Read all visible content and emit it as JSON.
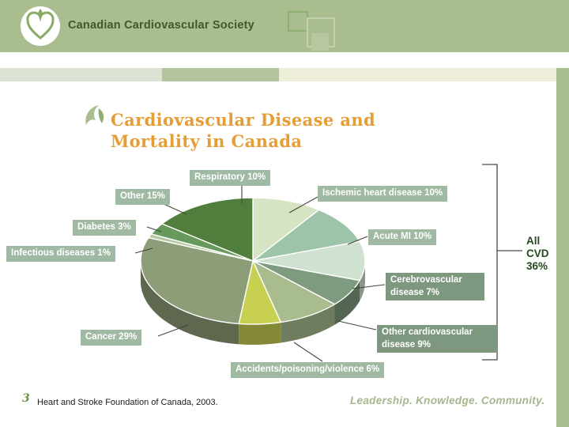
{
  "header": {
    "logo_text": "Canadian Cardiovascular Society"
  },
  "title": "Cardiovascular Disease and\nMortality in Canada",
  "chart_data": {
    "type": "pie",
    "style": "3d",
    "title": "Cardiovascular Disease and Mortality in Canada",
    "unit": "%",
    "slices": [
      {
        "id": "respiratory",
        "label": "Respiratory",
        "value": 10,
        "display": "Respiratory 10%",
        "color": "#d6e4c3"
      },
      {
        "id": "ischemic-heart-disease",
        "label": "Ischemic heart disease",
        "value": 10,
        "display": "Ischemic heart disease 10%",
        "color": "#9dc4a9"
      },
      {
        "id": "acute-mi",
        "label": "Acute MI",
        "value": 10,
        "display": "Acute MI 10%",
        "color": "#cfe2d2"
      },
      {
        "id": "cerebrovascular-disease",
        "label": "Cerebrovascular disease",
        "value": 7,
        "display": "Cerebrovascular disease 7%",
        "color": "#7e9b80"
      },
      {
        "id": "other-cardiovascular-disease",
        "label": "Other cardiovascular disease",
        "value": 9,
        "display": "Other cardiovascular disease 9%",
        "color": "#a9bc8e"
      },
      {
        "id": "accidents-poisoning-violence",
        "label": "Accidents/poisoning/violence",
        "value": 6,
        "display": "Accidents/poisoning/violence 6%",
        "color": "#c8d051"
      },
      {
        "id": "cancer",
        "label": "Cancer",
        "value": 29,
        "display": "Cancer 29%",
        "color": "#8d9d78"
      },
      {
        "id": "infectious-diseases",
        "label": "Infectious diseases",
        "value": 1,
        "display": "Infectious diseases 1%",
        "color": "#b7c8a0"
      },
      {
        "id": "diabetes",
        "label": "Diabetes",
        "value": 3,
        "display": "Diabetes 3%",
        "color": "#68995c"
      },
      {
        "id": "other",
        "label": "Other",
        "value": 15,
        "display": "Other 15%",
        "color": "#527e3d"
      }
    ],
    "annotation": {
      "display": "All CVD 36%",
      "text": "All\nCVD\n36%",
      "value": 36,
      "covers": [
        "Ischemic heart disease",
        "Acute MI",
        "Cerebrovascular disease",
        "Other cardiovascular disease"
      ]
    }
  },
  "footer": {
    "slide_number": "3",
    "source": "Heart and Stroke Foundation of Canada, 2003.",
    "tagline": "Leadership. Knowledge. Community."
  }
}
